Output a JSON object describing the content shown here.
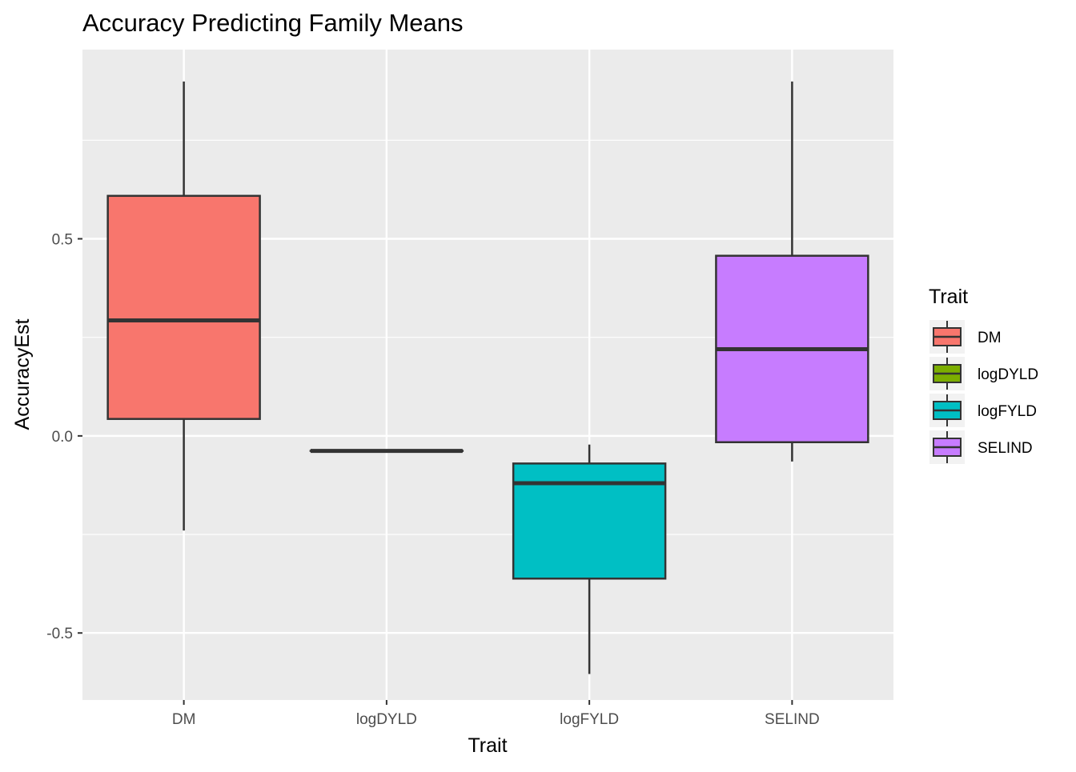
{
  "chart_data": {
    "type": "boxplot",
    "title": "Accuracy Predicting Family Means",
    "xlabel": "Trait",
    "ylabel": "AccuracyEst",
    "ylim": [
      -0.67,
      0.98
    ],
    "yticks": [
      -0.5,
      0.0,
      0.5
    ],
    "ytick_labels": [
      "-0.5",
      "0.0",
      "0.5"
    ],
    "categories": [
      "DM",
      "logDYLD",
      "logFYLD",
      "SELIND"
    ],
    "boxes": [
      {
        "category": "DM",
        "ymin": -0.24,
        "lower": 0.043,
        "median": 0.293,
        "upper": 0.609,
        "ymax": 0.899,
        "fill": "#F8766D"
      },
      {
        "category": "logDYLD",
        "ymin": -0.038,
        "lower": -0.038,
        "median": -0.038,
        "upper": -0.038,
        "ymax": -0.038,
        "fill": "#7CAE00"
      },
      {
        "category": "logFYLD",
        "ymin": -0.604,
        "lower": -0.362,
        "median": -0.12,
        "upper": -0.07,
        "ymax": -0.022,
        "fill": "#00BFC4"
      },
      {
        "category": "SELIND",
        "ymin": -0.065,
        "lower": -0.016,
        "median": 0.22,
        "upper": 0.457,
        "ymax": 0.899,
        "fill": "#C77CFF"
      }
    ],
    "grid": true,
    "legend": {
      "title": "Trait",
      "position": "right",
      "entries": [
        {
          "label": "DM",
          "color": "#F8766D"
        },
        {
          "label": "logDYLD",
          "color": "#7CAE00"
        },
        {
          "label": "logFYLD",
          "color": "#00BFC4"
        },
        {
          "label": "SELIND",
          "color": "#C77CFF"
        }
      ]
    }
  }
}
